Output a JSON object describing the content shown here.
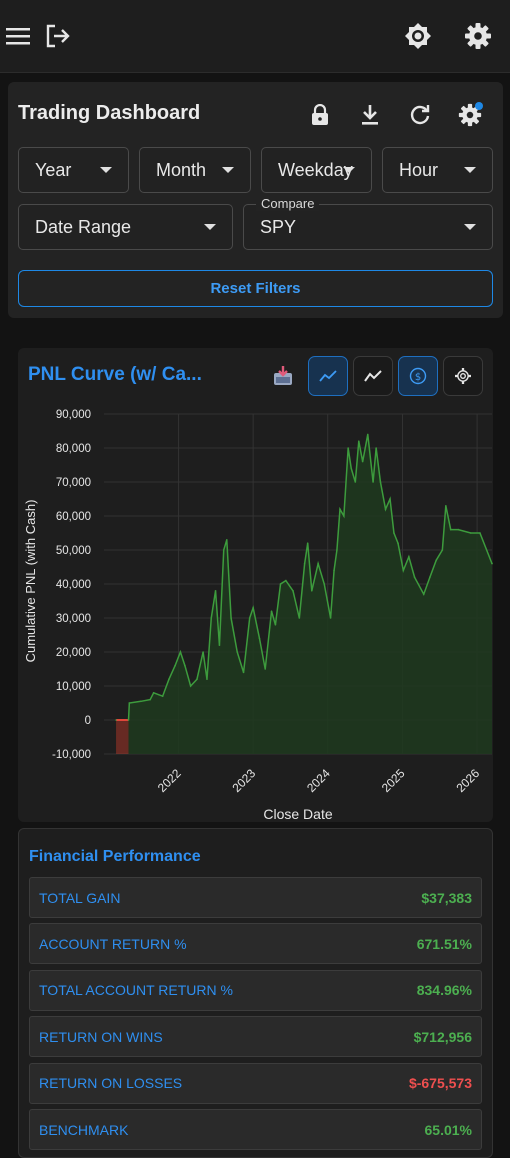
{
  "topbar": {
    "menu_icon": "hamburger-icon",
    "logout_icon": "logout-icon",
    "theme_icon": "brightness-icon",
    "settings_icon": "gear-icon"
  },
  "panel": {
    "title": "Trading Dashboard",
    "icons": [
      "lock-icon",
      "download-icon",
      "refresh-icon",
      "gear-icon"
    ],
    "filters": {
      "year": "Year",
      "month": "Month",
      "weekday": "Weekday",
      "hour": "Hour",
      "date_range": "Date Range",
      "compare_label": "Compare",
      "compare_value": "SPY"
    },
    "reset_label": "Reset Filters"
  },
  "chart_card": {
    "title": "PNL Curve (w/ Ca...",
    "colors": {
      "accent": "#2f8ff0",
      "line": "#3d9c3d",
      "fill": "#1f3a1f",
      "negative": "#c0392b"
    }
  },
  "chart_data": {
    "type": "area",
    "title": "",
    "xlabel": "Close Date",
    "ylabel": "Cumulative PNL (with Cash)",
    "ylim": [
      -10000,
      90000
    ],
    "yticks": [
      "90,000",
      "80,000",
      "70,000",
      "60,000",
      "50,000",
      "40,000",
      "30,000",
      "20,000",
      "10,000",
      "0",
      "-10,000"
    ],
    "xticks": [
      "2022",
      "2023",
      "2024",
      "2025",
      "2026"
    ],
    "grid": true,
    "series": [
      {
        "points": [
          [
            "2021-03-01",
            0
          ],
          [
            "2021-05-01",
            0
          ],
          [
            "2021-05-05",
            5000
          ],
          [
            "2021-07-01",
            5500
          ],
          [
            "2021-08-15",
            6000
          ],
          [
            "2021-09-01",
            8000
          ],
          [
            "2021-10-15",
            7000
          ],
          [
            "2021-11-15",
            12000
          ],
          [
            "2021-12-15",
            16000
          ],
          [
            "2022-01-10",
            20000
          ],
          [
            "2022-02-01",
            16000
          ],
          [
            "2022-03-01",
            10000
          ],
          [
            "2022-04-01",
            12000
          ],
          [
            "2022-05-01",
            20000
          ],
          [
            "2022-05-20",
            12000
          ],
          [
            "2022-06-10",
            30000
          ],
          [
            "2022-07-01",
            38000
          ],
          [
            "2022-07-20",
            22000
          ],
          [
            "2022-08-10",
            50000
          ],
          [
            "2022-08-25",
            53000
          ],
          [
            "2022-09-15",
            30000
          ],
          [
            "2022-10-15",
            20000
          ],
          [
            "2022-11-15",
            14000
          ],
          [
            "2022-12-15",
            30000
          ],
          [
            "2023-01-01",
            33000
          ],
          [
            "2023-02-01",
            24000
          ],
          [
            "2023-03-01",
            15000
          ],
          [
            "2023-04-01",
            32000
          ],
          [
            "2023-04-20",
            28000
          ],
          [
            "2023-05-15",
            40000
          ],
          [
            "2023-06-10",
            41000
          ],
          [
            "2023-07-15",
            38000
          ],
          [
            "2023-08-15",
            30000
          ],
          [
            "2023-09-10",
            46000
          ],
          [
            "2023-09-25",
            52000
          ],
          [
            "2023-10-15",
            38000
          ],
          [
            "2023-11-15",
            46000
          ],
          [
            "2023-12-15",
            40000
          ],
          [
            "2024-01-15",
            30000
          ],
          [
            "2024-02-01",
            44000
          ],
          [
            "2024-02-15",
            50000
          ],
          [
            "2024-03-01",
            62000
          ],
          [
            "2024-03-20",
            60000
          ],
          [
            "2024-04-10",
            80000
          ],
          [
            "2024-04-25",
            74000
          ],
          [
            "2024-05-15",
            70000
          ],
          [
            "2024-06-01",
            82000
          ],
          [
            "2024-06-20",
            76000
          ],
          [
            "2024-07-15",
            84000
          ],
          [
            "2024-08-10",
            70000
          ],
          [
            "2024-08-25",
            80000
          ],
          [
            "2024-09-15",
            70000
          ],
          [
            "2024-10-10",
            62000
          ],
          [
            "2024-11-01",
            65000
          ],
          [
            "2024-11-20",
            55000
          ],
          [
            "2024-12-10",
            52000
          ],
          [
            "2025-01-05",
            44000
          ],
          [
            "2025-02-01",
            48000
          ],
          [
            "2025-03-01",
            42000
          ],
          [
            "2025-04-15",
            37000
          ],
          [
            "2025-05-15",
            42000
          ],
          [
            "2025-06-15",
            47000
          ],
          [
            "2025-07-15",
            50000
          ],
          [
            "2025-08-01",
            63000
          ],
          [
            "2025-08-25",
            56000
          ],
          [
            "2025-10-01",
            56000
          ],
          [
            "2025-12-01",
            55000
          ],
          [
            "2026-01-15",
            55000
          ],
          [
            "2026-03-15",
            46000
          ]
        ]
      }
    ]
  },
  "financial": {
    "title": "Financial Performance",
    "rows": [
      {
        "label": "TOTAL GAIN",
        "value": "$37,383",
        "sign": "pos"
      },
      {
        "label": "ACCOUNT RETURN %",
        "value": "671.51%",
        "sign": "pos"
      },
      {
        "label": "TOTAL ACCOUNT RETURN %",
        "value": "834.96%",
        "sign": "pos"
      },
      {
        "label": "RETURN ON WINS",
        "value": "$712,956",
        "sign": "pos"
      },
      {
        "label": "RETURN ON LOSSES",
        "value": "$-675,573",
        "sign": "neg"
      },
      {
        "label": "BENCHMARK",
        "value": "65.01%",
        "sign": "pos"
      }
    ]
  }
}
